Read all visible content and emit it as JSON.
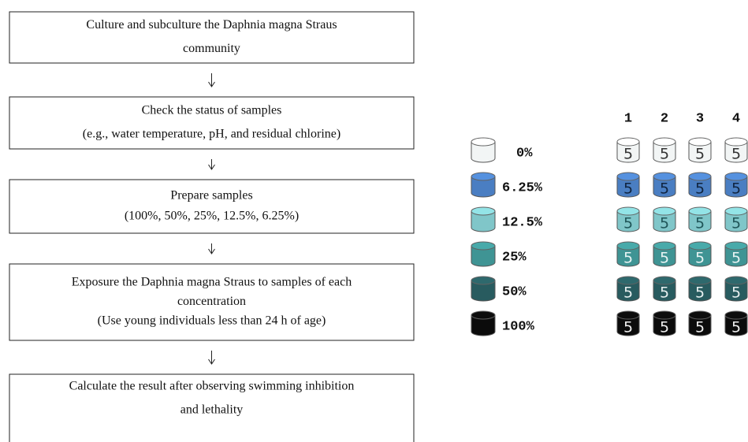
{
  "flowchart": {
    "steps": [
      {
        "lines": [
          "Culture and subculture the Daphnia magna Straus",
          "community"
        ]
      },
      {
        "lines": [
          "Check the status of samples",
          "(e.g., water temperature, pH, and residual chlorine)"
        ]
      },
      {
        "lines": [
          "Prepare samples",
          "(100%, 50%, 25%, 12.5%, 6.25%)"
        ]
      },
      {
        "lines": [
          "Exposure the Daphnia magna Straus to samples of each",
          "concentration",
          "(Use young individuals less than 24 h of age)"
        ]
      },
      {
        "lines": [
          "Calculate the result after observing swimming inhibition",
          "and lethality"
        ]
      }
    ]
  },
  "setup": {
    "column_headers": [
      "1",
      "2",
      "3",
      "4"
    ],
    "rows": [
      {
        "label": "0%",
        "color": "#f2f5f5",
        "text_color": "#333333",
        "counts": [
          "5",
          "5",
          "5",
          "5"
        ]
      },
      {
        "label": "6.25%",
        "color": "#4a7ec2",
        "text_color": "#10243f",
        "counts": [
          "5",
          "5",
          "5",
          "5"
        ]
      },
      {
        "label": "12.5%",
        "color": "#80c6c9",
        "text_color": "#1f5558",
        "counts": [
          "5",
          "5",
          "5",
          "5"
        ]
      },
      {
        "label": "25%",
        "color": "#3f9494",
        "text_color": "#e8f4f4",
        "counts": [
          "5",
          "5",
          "5",
          "5"
        ]
      },
      {
        "label": "50%",
        "color": "#285b5f",
        "text_color": "#e8f0f0",
        "counts": [
          "5",
          "5",
          "5",
          "5"
        ]
      },
      {
        "label": "100%",
        "color": "#0b0b0b",
        "text_color": "#f0f0f0",
        "counts": [
          "5",
          "5",
          "5",
          "5"
        ]
      }
    ]
  }
}
